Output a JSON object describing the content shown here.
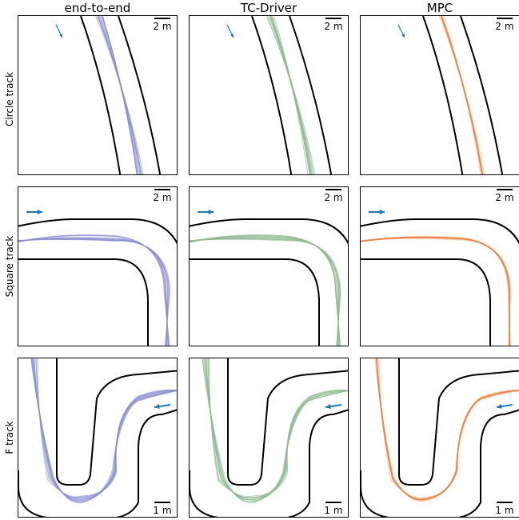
{
  "columns": [
    {
      "title": "end-to-end",
      "traj_color": "#8c8fd0",
      "mean_color": ""
    },
    {
      "title": "TC-Driver",
      "traj_color": "#8fb890",
      "mean_color": ""
    },
    {
      "title": "MPC",
      "traj_color": "#f6c0a0",
      "mean_color": "#e8874a"
    }
  ],
  "rows": [
    {
      "label": "Circle track",
      "scale": "2 m",
      "scale_pos": "top-right"
    },
    {
      "label": "Square track",
      "scale": "2 m",
      "scale_pos": "top-right"
    },
    {
      "label": "F track",
      "scale": "1 m",
      "scale_pos": "bottom-right"
    }
  ],
  "arrow_color": "#1f77b4",
  "boundary_color": "#000000"
}
